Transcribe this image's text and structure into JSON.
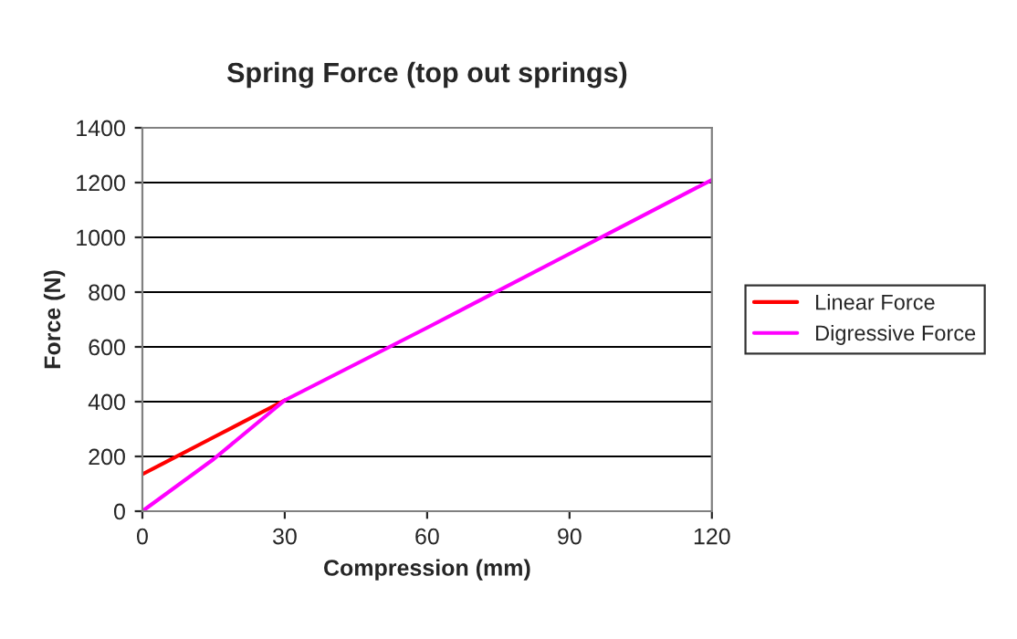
{
  "chart_data": {
    "type": "line",
    "title": "Spring Force (top out springs)",
    "xlabel": "Compression (mm)",
    "ylabel": "Force (N)",
    "series": [
      {
        "name": "Linear Force",
        "color": "#ff0000",
        "x": [
          0,
          15,
          30
        ],
        "values": [
          135,
          270,
          405
        ]
      },
      {
        "name": "Digressive Force",
        "color": "#ff00ff",
        "x": [
          0,
          15,
          30,
          60,
          90,
          120
        ],
        "values": [
          0,
          190,
          405,
          670,
          940,
          1210
        ]
      }
    ],
    "xlim": [
      0,
      120
    ],
    "xticks": [
      0,
      30,
      60,
      90,
      120
    ],
    "ylim": [
      0,
      1400
    ],
    "yticks": [
      0,
      200,
      400,
      600,
      800,
      1000,
      1200,
      1400
    ],
    "grid": "y",
    "legend": "right",
    "marker": "none",
    "line_style": "solid"
  }
}
